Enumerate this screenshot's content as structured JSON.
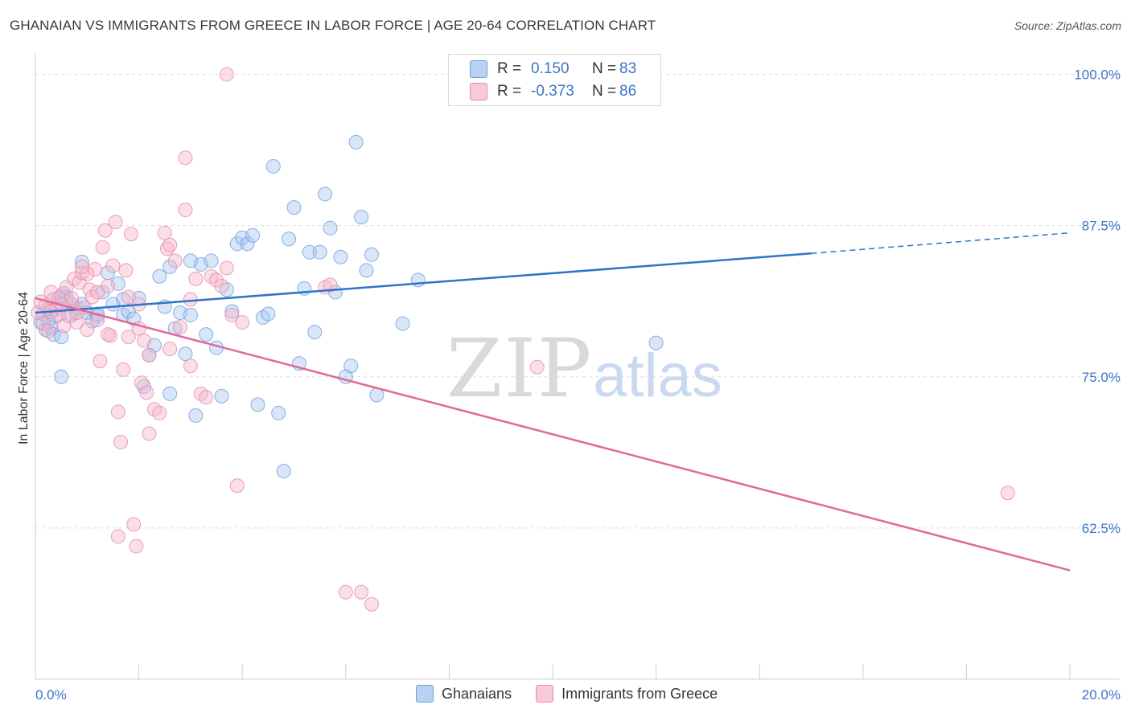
{
  "title": "GHANAIAN VS IMMIGRANTS FROM GREECE IN LABOR FORCE | AGE 20-64 CORRELATION CHART",
  "source": "Source: ZipAtlas.com",
  "watermark": {
    "zip": "ZIP",
    "atlas": "atlas"
  },
  "legend": {
    "rows": [
      {
        "r_label": "R =",
        "r_value": "0.150",
        "n_label": "N =",
        "n_value": "83"
      },
      {
        "r_label": "R =",
        "r_value": "-0.373",
        "n_label": "N =",
        "n_value": "86"
      }
    ]
  },
  "colors": {
    "blue_fill": "#a9c7ef",
    "blue_stroke": "#6d9de0",
    "blue_line": "#2f73c8",
    "pink_fill": "#f5b9cc",
    "pink_stroke": "#e98aa9",
    "pink_line": "#e0699a",
    "tick_text": "#3d74c9",
    "grid": "#dddddd"
  },
  "chart_data": {
    "type": "scatter",
    "title": "GHANAIAN VS IMMIGRANTS FROM GREECE IN LABOR FORCE | AGE 20-64 CORRELATION CHART",
    "xlabel": "",
    "ylabel": "In Labor Force | Age 20-64",
    "xlim": [
      0,
      20
    ],
    "ylim": [
      50,
      101.5
    ],
    "x_tick_labels": [
      "0.0%",
      "20.0%"
    ],
    "y_ticks": [
      62.5,
      75.0,
      87.5,
      100.0
    ],
    "y_tick_labels": [
      "62.5%",
      "75.0%",
      "87.5%",
      "100.0%"
    ],
    "grid": true,
    "legend_position": "top-center",
    "series": [
      {
        "name": "Ghanaians",
        "trend": {
          "x0": 0.0,
          "y0": 80.3,
          "x1": 15.0,
          "y1": 85.2,
          "dashed_to_x": 20.0,
          "dashed_to_y": 86.9
        },
        "points": [
          [
            0.1,
            79.5
          ],
          [
            0.15,
            80.2
          ],
          [
            0.2,
            78.9
          ],
          [
            0.25,
            80.6
          ],
          [
            0.3,
            79.1
          ],
          [
            0.35,
            78.5
          ],
          [
            0.4,
            80.8
          ],
          [
            0.45,
            81.5
          ],
          [
            0.5,
            78.3
          ],
          [
            0.55,
            81.9
          ],
          [
            0.6,
            81.2
          ],
          [
            0.7,
            80.1
          ],
          [
            0.8,
            80.7
          ],
          [
            0.9,
            81.0
          ],
          [
            1.0,
            80.3
          ],
          [
            1.1,
            79.6
          ],
          [
            1.2,
            80.0
          ],
          [
            1.3,
            82.0
          ],
          [
            1.4,
            83.6
          ],
          [
            1.5,
            81.0
          ],
          [
            1.6,
            82.7
          ],
          [
            1.7,
            80.1
          ],
          [
            1.8,
            80.4
          ],
          [
            1.9,
            79.8
          ],
          [
            2.0,
            81.5
          ],
          [
            2.1,
            74.2
          ],
          [
            2.2,
            76.8
          ],
          [
            2.3,
            77.6
          ],
          [
            2.4,
            83.3
          ],
          [
            2.5,
            80.8
          ],
          [
            2.6,
            73.6
          ],
          [
            2.7,
            79.0
          ],
          [
            2.8,
            80.3
          ],
          [
            2.9,
            76.9
          ],
          [
            3.0,
            80.1
          ],
          [
            3.1,
            71.8
          ],
          [
            3.2,
            84.3
          ],
          [
            3.3,
            78.5
          ],
          [
            3.4,
            84.6
          ],
          [
            3.5,
            77.4
          ],
          [
            3.6,
            73.4
          ],
          [
            3.7,
            82.2
          ],
          [
            3.8,
            80.4
          ],
          [
            3.9,
            86.0
          ],
          [
            4.0,
            86.5
          ],
          [
            4.1,
            86.0
          ],
          [
            4.2,
            86.7
          ],
          [
            4.3,
            72.7
          ],
          [
            4.4,
            79.9
          ],
          [
            4.5,
            80.2
          ],
          [
            4.6,
            92.4
          ],
          [
            4.7,
            72.0
          ],
          [
            4.8,
            67.2
          ],
          [
            4.9,
            86.4
          ],
          [
            5.0,
            89.0
          ],
          [
            5.1,
            76.1
          ],
          [
            5.2,
            82.3
          ],
          [
            5.3,
            85.3
          ],
          [
            5.4,
            78.7
          ],
          [
            5.5,
            85.3
          ],
          [
            5.6,
            90.1
          ],
          [
            5.7,
            87.3
          ],
          [
            5.8,
            82.0
          ],
          [
            5.9,
            84.9
          ],
          [
            6.0,
            75.0
          ],
          [
            6.1,
            75.9
          ],
          [
            6.2,
            94.4
          ],
          [
            6.3,
            88.2
          ],
          [
            6.4,
            83.8
          ],
          [
            6.5,
            85.1
          ],
          [
            6.6,
            73.5
          ],
          [
            7.1,
            79.4
          ],
          [
            7.4,
            83.0
          ],
          [
            1.2,
            80.2
          ],
          [
            0.9,
            84.5
          ],
          [
            0.6,
            81.6
          ],
          [
            0.5,
            75.0
          ],
          [
            1.7,
            81.4
          ],
          [
            2.6,
            84.1
          ],
          [
            3.0,
            84.6
          ],
          [
            12.0,
            77.8
          ],
          [
            0.4,
            80.0
          ],
          [
            0.25,
            79.6
          ]
        ]
      },
      {
        "name": "Immigrants from Greece",
        "trend": {
          "x0": 0.0,
          "y0": 81.5,
          "x1": 20.0,
          "y1": 59.0
        },
        "points": [
          [
            0.05,
            80.3
          ],
          [
            0.1,
            81.2
          ],
          [
            0.15,
            79.4
          ],
          [
            0.2,
            80.9
          ],
          [
            0.25,
            78.8
          ],
          [
            0.3,
            82.0
          ],
          [
            0.35,
            81.4
          ],
          [
            0.4,
            80.6
          ],
          [
            0.45,
            80.1
          ],
          [
            0.5,
            81.7
          ],
          [
            0.55,
            79.2
          ],
          [
            0.6,
            82.4
          ],
          [
            0.65,
            80.0
          ],
          [
            0.7,
            81.0
          ],
          [
            0.75,
            83.1
          ],
          [
            0.8,
            79.5
          ],
          [
            0.85,
            82.8
          ],
          [
            0.9,
            83.6
          ],
          [
            0.95,
            80.7
          ],
          [
            1.0,
            78.9
          ],
          [
            1.05,
            82.2
          ],
          [
            1.1,
            81.6
          ],
          [
            1.15,
            83.9
          ],
          [
            1.2,
            79.7
          ],
          [
            1.25,
            76.3
          ],
          [
            1.3,
            85.7
          ],
          [
            1.35,
            87.1
          ],
          [
            1.4,
            82.5
          ],
          [
            1.45,
            78.4
          ],
          [
            1.5,
            84.2
          ],
          [
            1.55,
            87.8
          ],
          [
            1.6,
            72.1
          ],
          [
            1.65,
            69.6
          ],
          [
            1.7,
            75.6
          ],
          [
            1.75,
            83.8
          ],
          [
            1.8,
            81.6
          ],
          [
            1.85,
            86.8
          ],
          [
            1.9,
            62.8
          ],
          [
            1.95,
            61.0
          ],
          [
            2.0,
            79.0
          ],
          [
            2.05,
            74.5
          ],
          [
            2.1,
            78.0
          ],
          [
            2.15,
            73.7
          ],
          [
            2.2,
            76.8
          ],
          [
            2.3,
            72.3
          ],
          [
            2.4,
            72.0
          ],
          [
            2.5,
            86.9
          ],
          [
            2.55,
            85.6
          ],
          [
            2.6,
            77.3
          ],
          [
            2.7,
            84.6
          ],
          [
            2.8,
            79.1
          ],
          [
            2.9,
            88.8
          ],
          [
            3.0,
            81.4
          ],
          [
            3.1,
            83.1
          ],
          [
            3.2,
            73.6
          ],
          [
            3.3,
            73.3
          ],
          [
            3.4,
            83.3
          ],
          [
            3.5,
            83.0
          ],
          [
            3.6,
            82.5
          ],
          [
            3.7,
            84.0
          ],
          [
            3.8,
            80.1
          ],
          [
            3.9,
            66.0
          ],
          [
            4.0,
            79.5
          ],
          [
            3.7,
            100.0
          ],
          [
            2.9,
            93.1
          ],
          [
            1.6,
            61.8
          ],
          [
            6.0,
            57.2
          ],
          [
            6.3,
            57.2
          ],
          [
            6.5,
            56.2
          ],
          [
            9.7,
            75.8
          ],
          [
            18.8,
            65.4
          ],
          [
            0.7,
            81.5
          ],
          [
            1.0,
            83.5
          ],
          [
            1.2,
            82.0
          ],
          [
            2.0,
            81.0
          ],
          [
            2.2,
            70.3
          ],
          [
            2.6,
            85.9
          ],
          [
            0.3,
            80.4
          ],
          [
            0.5,
            81.0
          ],
          [
            0.8,
            80.3
          ],
          [
            5.6,
            82.4
          ],
          [
            5.7,
            82.6
          ],
          [
            1.4,
            78.5
          ],
          [
            1.8,
            78.3
          ],
          [
            3.0,
            75.9
          ],
          [
            0.9,
            84.1
          ]
        ]
      }
    ]
  }
}
